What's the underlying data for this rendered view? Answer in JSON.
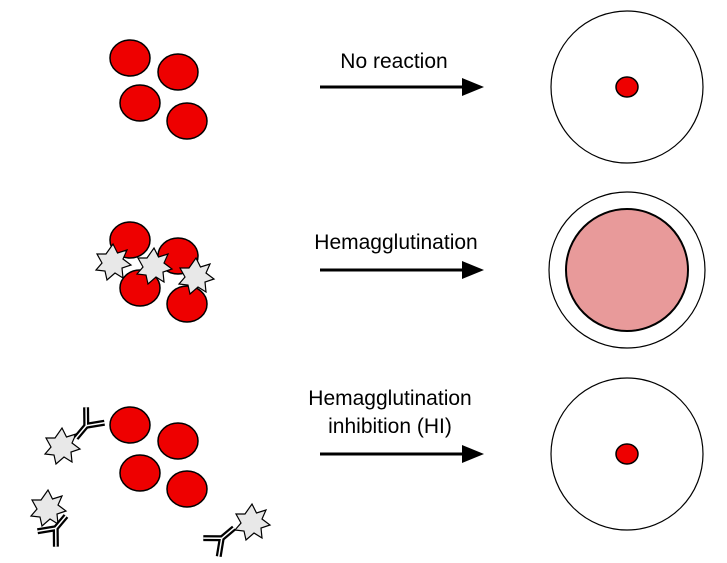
{
  "diagram": {
    "colors": {
      "rbc": "#ee0000",
      "outline": "#000000",
      "virus": "#e8e8e8",
      "agglutination_fill": "#e89a9a",
      "well": "#ffffff"
    },
    "rows": [
      {
        "id": "no-reaction",
        "label_lines": [
          "No reaction"
        ],
        "well_result": "small red dot (button)"
      },
      {
        "id": "hemagglutination",
        "label_lines": [
          "Hemagglutination"
        ],
        "well_result": "diffuse pink mat"
      },
      {
        "id": "hemagglutination-inhibition",
        "label_lines": [
          "Hemagglutination",
          "inhibition (HI)"
        ],
        "well_result": "small red dot (button)"
      }
    ]
  }
}
